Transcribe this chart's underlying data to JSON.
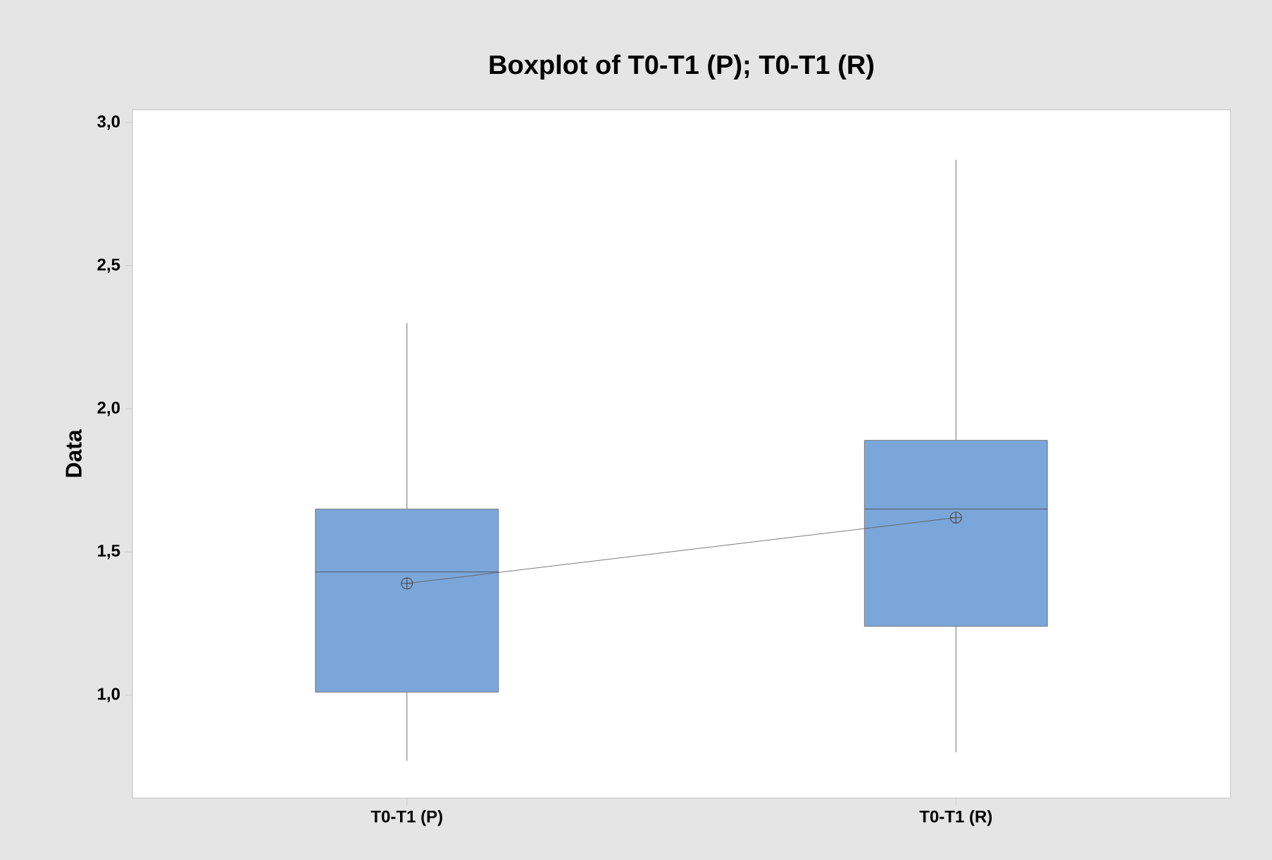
{
  "chart_data": {
    "type": "box",
    "title": "Boxplot of T0-T1 (P); T0-T1 (R)",
    "ylabel": "Data",
    "categories": [
      "T0-T1 (P)",
      "T0-T1 (R)"
    ],
    "boxes": [
      {
        "low": 0.77,
        "q1": 1.01,
        "median": 1.43,
        "q3": 1.65,
        "high": 2.3,
        "mean": 1.39
      },
      {
        "low": 0.8,
        "q1": 1.24,
        "median": 1.65,
        "q3": 1.89,
        "high": 2.87,
        "mean": 1.62
      }
    ],
    "color": "#7ba6d9",
    "ylim": [
      0.64,
      3.045
    ],
    "yticks": [
      {
        "value": 1.0,
        "label": "1,0"
      },
      {
        "value": 1.5,
        "label": "1,5"
      },
      {
        "value": 2.0,
        "label": "2,0"
      },
      {
        "value": 2.5,
        "label": "2,5"
      },
      {
        "value": 3.0,
        "label": "3,0"
      }
    ],
    "series": [
      {
        "type": "line",
        "values": [
          1.39,
          1.62
        ],
        "color": "#595959"
      }
    ],
    "grid": false
  }
}
